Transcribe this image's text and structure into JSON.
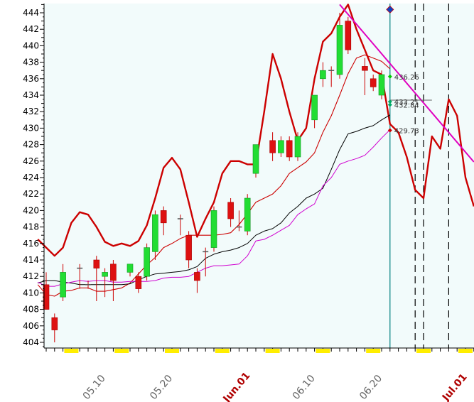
{
  "chart_data": {
    "type": "candlestick",
    "title": "",
    "ylim": [
      403,
      445
    ],
    "y_ticks": [
      404,
      406,
      408,
      410,
      412,
      414,
      416,
      418,
      420,
      422,
      424,
      426,
      428,
      430,
      432,
      434,
      436,
      438,
      440,
      442,
      444
    ],
    "x_ticks": [
      {
        "label": "05.10",
        "day": 6,
        "month_start": false
      },
      {
        "label": "05.20",
        "day": 14,
        "month_start": false
      },
      {
        "label": "Jun.01",
        "day": 23,
        "month_start": true
      },
      {
        "label": "06.10",
        "day": 31,
        "month_start": false
      },
      {
        "label": "06.20",
        "day": 39,
        "month_start": false
      },
      {
        "label": "Jul.01",
        "day": 49,
        "month_start": true
      }
    ],
    "candles": [
      {
        "day": 0,
        "open": 411,
        "high": 412.5,
        "low": 408,
        "close": 408
      },
      {
        "day": 1,
        "open": 407,
        "high": 407.5,
        "low": 404,
        "close": 405.5
      },
      {
        "day": 2,
        "open": 409.5,
        "high": 413.5,
        "low": 409,
        "close": 412.5
      },
      {
        "day": 4,
        "open": 413,
        "high": 413.5,
        "low": 410.5,
        "close": 413
      },
      {
        "day": 5,
        "open": 411,
        "high": 411.5,
        "low": 410.5,
        "close": 411
      },
      {
        "day": 6,
        "open": 414,
        "high": 414.5,
        "low": 409,
        "close": 413
      },
      {
        "day": 7,
        "open": 412,
        "high": 413,
        "low": 409.5,
        "close": 412.5
      },
      {
        "day": 8,
        "open": 413.5,
        "high": 414,
        "low": 409,
        "close": 411.5
      },
      {
        "day": 10,
        "open": 412.5,
        "high": 413.5,
        "low": 412,
        "close": 413.5
      },
      {
        "day": 11,
        "open": 412,
        "high": 412.5,
        "low": 410,
        "close": 410.5
      },
      {
        "day": 12,
        "open": 412,
        "high": 416,
        "low": 411.5,
        "close": 415.5
      },
      {
        "day": 13,
        "open": 415,
        "high": 420,
        "low": 414,
        "close": 419.5
      },
      {
        "day": 14,
        "open": 420,
        "high": 420.5,
        "low": 417,
        "close": 418.5
      },
      {
        "day": 16,
        "open": 419,
        "high": 419.5,
        "low": 417,
        "close": 419
      },
      {
        "day": 17,
        "open": 417,
        "high": 417.5,
        "low": 413,
        "close": 414
      },
      {
        "day": 18,
        "open": 412.5,
        "high": 413,
        "low": 410,
        "close": 411.5
      },
      {
        "day": 19,
        "open": 415,
        "high": 415.5,
        "low": 412,
        "close": 415
      },
      {
        "day": 20,
        "open": 415.5,
        "high": 420.5,
        "low": 415,
        "close": 420
      },
      {
        "day": 22,
        "open": 421,
        "high": 421.5,
        "low": 418,
        "close": 419
      },
      {
        "day": 23,
        "open": 418,
        "high": 420,
        "low": 417.5,
        "close": 418
      },
      {
        "day": 24,
        "open": 417.5,
        "high": 422,
        "low": 417,
        "close": 421.5
      },
      {
        "day": 25,
        "open": 424.5,
        "high": 428,
        "low": 424,
        "close": 428
      },
      {
        "day": 27,
        "open": 428.5,
        "high": 429.5,
        "low": 426,
        "close": 427
      },
      {
        "day": 28,
        "open": 427,
        "high": 429,
        "low": 426.5,
        "close": 428.5
      },
      {
        "day": 29,
        "open": 428.5,
        "high": 429,
        "low": 426,
        "close": 426.5
      },
      {
        "day": 30,
        "open": 426.5,
        "high": 429.5,
        "low": 426,
        "close": 429
      },
      {
        "day": 32,
        "open": 431,
        "high": 434,
        "low": 430,
        "close": 434
      },
      {
        "day": 33,
        "open": 436,
        "high": 438,
        "low": 435,
        "close": 437
      },
      {
        "day": 34,
        "open": 437,
        "high": 437.5,
        "low": 435,
        "close": 437
      },
      {
        "day": 35,
        "open": 436.5,
        "high": 444,
        "low": 436,
        "close": 442.5
      },
      {
        "day": 36,
        "open": 443,
        "high": 443.5,
        "low": 439,
        "close": 439.5
      },
      {
        "day": 38,
        "open": 437.5,
        "high": 438.5,
        "low": 434,
        "close": 437
      },
      {
        "day": 39,
        "open": 436,
        "high": 436.5,
        "low": 434.5,
        "close": 435
      },
      {
        "day": 40,
        "open": 434,
        "high": 437,
        "low": 433.5,
        "close": 436.5
      }
    ],
    "series": [
      {
        "role": "upper-envelope",
        "color": "#cc0000",
        "width": 2.4,
        "points": [
          [
            -1,
            416.5
          ],
          [
            0,
            415.5
          ],
          [
            1,
            414.5
          ],
          [
            2,
            415.5
          ],
          [
            3,
            418.5
          ],
          [
            4,
            419.8
          ],
          [
            5,
            419.5
          ],
          [
            6,
            418
          ],
          [
            7,
            416.2
          ],
          [
            8,
            415.7
          ],
          [
            9,
            416
          ],
          [
            10,
            415.7
          ],
          [
            11,
            416.3
          ],
          [
            12,
            418.2
          ],
          [
            13,
            421.5
          ],
          [
            14,
            425.2
          ],
          [
            15,
            426.4
          ],
          [
            16,
            425
          ],
          [
            17,
            421
          ],
          [
            18,
            416.8
          ],
          [
            19,
            419
          ],
          [
            20,
            421
          ],
          [
            21,
            424.5
          ],
          [
            22,
            426
          ],
          [
            23,
            426
          ],
          [
            24,
            425.6
          ],
          [
            25,
            425.6
          ],
          [
            26,
            432
          ],
          [
            27,
            439
          ],
          [
            28,
            436
          ],
          [
            29,
            432
          ],
          [
            30,
            428.5
          ],
          [
            31,
            430
          ],
          [
            32,
            436
          ],
          [
            33,
            440.5
          ],
          [
            34,
            441.5
          ],
          [
            35,
            443.5
          ],
          [
            36,
            445
          ],
          [
            37,
            442
          ],
          [
            38,
            439.5
          ],
          [
            39,
            437
          ],
          [
            40,
            436.5
          ],
          [
            41,
            430.5
          ],
          [
            42,
            429.5
          ],
          [
            43,
            426.5
          ],
          [
            44,
            422.5
          ],
          [
            45,
            421.5
          ],
          [
            46,
            429
          ],
          [
            47,
            427.5
          ],
          [
            48,
            433.5
          ],
          [
            49,
            431.5
          ],
          [
            50,
            424
          ],
          [
            51,
            420.5
          ]
        ]
      },
      {
        "role": "lower-envelope",
        "color": "#cc0000",
        "width": 1.1,
        "points": [
          [
            -1,
            411
          ],
          [
            0,
            409.8
          ],
          [
            1,
            409.6
          ],
          [
            2,
            410.2
          ],
          [
            3,
            410.3
          ],
          [
            4,
            410.6
          ],
          [
            5,
            410.6
          ],
          [
            6,
            410.2
          ],
          [
            7,
            410.2
          ],
          [
            8,
            410.4
          ],
          [
            9,
            410.6
          ],
          [
            10,
            411.2
          ],
          [
            11,
            412.3
          ],
          [
            12,
            413.4
          ],
          [
            13,
            414.3
          ],
          [
            14,
            415.5
          ],
          [
            15,
            416
          ],
          [
            16,
            416.6
          ],
          [
            17,
            417
          ],
          [
            18,
            417
          ],
          [
            19,
            417
          ],
          [
            20,
            417
          ],
          [
            21,
            417.1
          ],
          [
            22,
            417.3
          ],
          [
            23,
            418.3
          ],
          [
            24,
            419.6
          ],
          [
            25,
            421
          ],
          [
            26,
            421.5
          ],
          [
            27,
            422
          ],
          [
            28,
            423
          ],
          [
            29,
            424.5
          ],
          [
            30,
            425.2
          ],
          [
            31,
            425.9
          ],
          [
            32,
            427
          ],
          [
            33,
            429.5
          ],
          [
            34,
            431.5
          ],
          [
            35,
            434
          ],
          [
            36,
            436.6
          ],
          [
            37,
            438.5
          ],
          [
            38,
            438.9
          ],
          [
            39,
            438.5
          ],
          [
            40,
            438.1
          ],
          [
            41,
            437.2
          ]
        ]
      },
      {
        "role": "middle-average",
        "color": "#000000",
        "width": 1,
        "points": [
          [
            -1,
            411.2
          ],
          [
            0,
            411.5
          ],
          [
            1,
            411.5
          ],
          [
            2,
            411.3
          ],
          [
            3,
            411.2
          ],
          [
            4,
            411
          ],
          [
            5,
            411
          ],
          [
            6,
            411
          ],
          [
            7,
            411
          ],
          [
            8,
            411
          ],
          [
            9,
            411
          ],
          [
            10,
            411.1
          ],
          [
            11,
            411.6
          ],
          [
            12,
            412
          ],
          [
            13,
            412.3
          ],
          [
            14,
            412.4
          ],
          [
            15,
            412.5
          ],
          [
            16,
            412.6
          ],
          [
            17,
            412.8
          ],
          [
            18,
            413.2
          ],
          [
            19,
            414.2
          ],
          [
            20,
            414.7
          ],
          [
            21,
            415
          ],
          [
            22,
            415.2
          ],
          [
            23,
            415.5
          ],
          [
            24,
            416
          ],
          [
            25,
            417
          ],
          [
            26,
            417.5
          ],
          [
            27,
            417.8
          ],
          [
            28,
            418.5
          ],
          [
            29,
            419.7
          ],
          [
            30,
            420.5
          ],
          [
            31,
            421.5
          ],
          [
            32,
            422
          ],
          [
            33,
            422.7
          ],
          [
            34,
            425
          ],
          [
            35,
            427.4
          ],
          [
            36,
            429.3
          ],
          [
            37,
            429.6
          ],
          [
            38,
            430
          ],
          [
            39,
            430.3
          ],
          [
            40,
            431
          ],
          [
            41,
            431.6
          ]
        ]
      },
      {
        "role": "lower-band",
        "color": "#d000d0",
        "width": 1,
        "points": [
          [
            -1,
            411.3
          ],
          [
            0,
            410.8
          ],
          [
            1,
            410.8
          ],
          [
            2,
            411.1
          ],
          [
            3,
            411.3
          ],
          [
            4,
            411.5
          ],
          [
            5,
            411.4
          ],
          [
            6,
            411.5
          ],
          [
            7,
            411.5
          ],
          [
            8,
            411.3
          ],
          [
            9,
            411.3
          ],
          [
            10,
            411.4
          ],
          [
            11,
            411.4
          ],
          [
            12,
            411.4
          ],
          [
            13,
            411.5
          ],
          [
            14,
            411.8
          ],
          [
            15,
            411.9
          ],
          [
            16,
            411.9
          ],
          [
            17,
            412
          ],
          [
            18,
            412.5
          ],
          [
            19,
            413
          ],
          [
            20,
            413.3
          ],
          [
            21,
            413.3
          ],
          [
            22,
            413.4
          ],
          [
            23,
            413.5
          ],
          [
            24,
            414.5
          ],
          [
            25,
            416.3
          ],
          [
            26,
            416.5
          ],
          [
            27,
            417
          ],
          [
            28,
            417.6
          ],
          [
            29,
            418.2
          ],
          [
            30,
            419.5
          ],
          [
            31,
            420.2
          ],
          [
            32,
            420.8
          ],
          [
            33,
            423
          ],
          [
            34,
            424
          ],
          [
            35,
            425.6
          ],
          [
            36,
            426
          ],
          [
            37,
            426.3
          ],
          [
            38,
            426.7
          ],
          [
            39,
            427.7
          ],
          [
            40,
            428.8
          ],
          [
            41,
            429.8
          ]
        ]
      },
      {
        "role": "trend-line",
        "color": "#e000c0",
        "width": 2,
        "points": [
          [
            35,
            445
          ],
          [
            51,
            425.9
          ]
        ]
      },
      {
        "role": "marker-line",
        "color": "#606060",
        "width": 1,
        "points": [
          [
            41,
            433.4
          ],
          [
            46,
            433.4
          ]
        ]
      }
    ],
    "annotations": [
      {
        "label": "436.26",
        "day": 41,
        "value": 436.26,
        "color": "#00cc00"
      },
      {
        "label": "433.21",
        "day": 41,
        "value": 433.21,
        "color": "#00aa66"
      },
      {
        "label": "432.84",
        "day": 41,
        "value": 432.84,
        "color": "#00aa66"
      },
      {
        "label": "429.73",
        "day": 41,
        "value": 429.73,
        "color": "#cc0000"
      }
    ],
    "vertical_markers": [
      {
        "day": 41,
        "color": "#008080",
        "style": "solid"
      },
      {
        "day": 44,
        "color": "#000000",
        "style": "dashed"
      },
      {
        "day": 45,
        "color": "#000000",
        "style": "dashed"
      },
      {
        "day": 48,
        "color": "#000000",
        "style": "dashed"
      }
    ],
    "diamond_marker": {
      "day": 41,
      "value": 444.4,
      "color": "#1040c0"
    },
    "colors": {
      "up": "#22dd33",
      "down": "#dd1111",
      "plot_bg": "#f2fbfb",
      "axis": "#000000",
      "highlight": "#ffee00"
    },
    "grid": false
  }
}
